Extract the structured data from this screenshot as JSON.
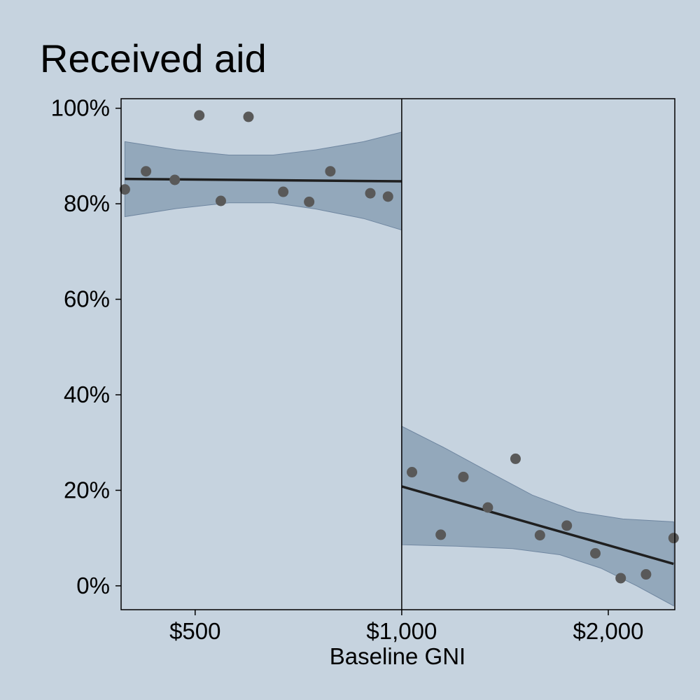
{
  "chart_data": {
    "type": "scatter",
    "title": "Received aid",
    "xlabel": "Baseline GNI",
    "ylabel": "",
    "x_scale": "log",
    "xlim": [
      390,
      2500
    ],
    "ylim": [
      -0.05,
      1.02
    ],
    "x_ticks": [
      {
        "value": 500,
        "label": "$500"
      },
      {
        "value": 1000,
        "label": "$1,000"
      },
      {
        "value": 2000,
        "label": "$2,000"
      }
    ],
    "y_ticks": [
      {
        "value": 0,
        "label": "0%"
      },
      {
        "value": 0.2,
        "label": "20%"
      },
      {
        "value": 0.4,
        "label": "40%"
      },
      {
        "value": 0.6,
        "label": "60%"
      },
      {
        "value": 0.8,
        "label": "80%"
      },
      {
        "value": 1.0,
        "label": "100%"
      }
    ],
    "threshold": 1000,
    "grid": false,
    "colors": {
      "background": "#c6d3df",
      "band": "#8aa0b5",
      "line": "#1f1f1f",
      "points": "#595959"
    },
    "segments": [
      {
        "points": [
          {
            "x": 395,
            "y": 0.83
          },
          {
            "x": 424,
            "y": 0.868
          },
          {
            "x": 467,
            "y": 0.85
          },
          {
            "x": 507,
            "y": 0.985
          },
          {
            "x": 545,
            "y": 0.806
          },
          {
            "x": 598,
            "y": 0.982
          },
          {
            "x": 672,
            "y": 0.825
          },
          {
            "x": 733,
            "y": 0.804
          },
          {
            "x": 787,
            "y": 0.868
          },
          {
            "x": 900,
            "y": 0.822
          },
          {
            "x": 955,
            "y": 0.815
          }
        ],
        "fit": [
          {
            "x": 395,
            "y": 0.852
          },
          {
            "x": 1000,
            "y": 0.847
          }
        ],
        "band_upper": [
          {
            "x": 395,
            "y": 0.93
          },
          {
            "x": 470,
            "y": 0.913
          },
          {
            "x": 560,
            "y": 0.902
          },
          {
            "x": 650,
            "y": 0.902
          },
          {
            "x": 750,
            "y": 0.913
          },
          {
            "x": 880,
            "y": 0.93
          },
          {
            "x": 1000,
            "y": 0.95
          }
        ],
        "band_lower": [
          {
            "x": 395,
            "y": 0.773
          },
          {
            "x": 470,
            "y": 0.79
          },
          {
            "x": 560,
            "y": 0.802
          },
          {
            "x": 650,
            "y": 0.802
          },
          {
            "x": 750,
            "y": 0.789
          },
          {
            "x": 880,
            "y": 0.769
          },
          {
            "x": 1000,
            "y": 0.745
          }
        ]
      },
      {
        "points": [
          {
            "x": 1035,
            "y": 0.238
          },
          {
            "x": 1140,
            "y": 0.107
          },
          {
            "x": 1230,
            "y": 0.228
          },
          {
            "x": 1335,
            "y": 0.164
          },
          {
            "x": 1465,
            "y": 0.266
          },
          {
            "x": 1590,
            "y": 0.106
          },
          {
            "x": 1740,
            "y": 0.126
          },
          {
            "x": 1915,
            "y": 0.068
          },
          {
            "x": 2085,
            "y": 0.016
          },
          {
            "x": 2270,
            "y": 0.024
          },
          {
            "x": 2490,
            "y": 0.1
          }
        ],
        "fit": [
          {
            "x": 1000,
            "y": 0.208
          },
          {
            "x": 2490,
            "y": 0.046
          }
        ],
        "band_upper": [
          {
            "x": 1000,
            "y": 0.334
          },
          {
            "x": 1150,
            "y": 0.29
          },
          {
            "x": 1350,
            "y": 0.236
          },
          {
            "x": 1550,
            "y": 0.19
          },
          {
            "x": 1800,
            "y": 0.155
          },
          {
            "x": 2100,
            "y": 0.14
          },
          {
            "x": 2490,
            "y": 0.134
          }
        ],
        "band_lower": [
          {
            "x": 1000,
            "y": 0.086
          },
          {
            "x": 1200,
            "y": 0.083
          },
          {
            "x": 1450,
            "y": 0.078
          },
          {
            "x": 1700,
            "y": 0.065
          },
          {
            "x": 1950,
            "y": 0.037
          },
          {
            "x": 2200,
            "y": 0.0
          },
          {
            "x": 2490,
            "y": -0.042
          }
        ]
      }
    ]
  }
}
